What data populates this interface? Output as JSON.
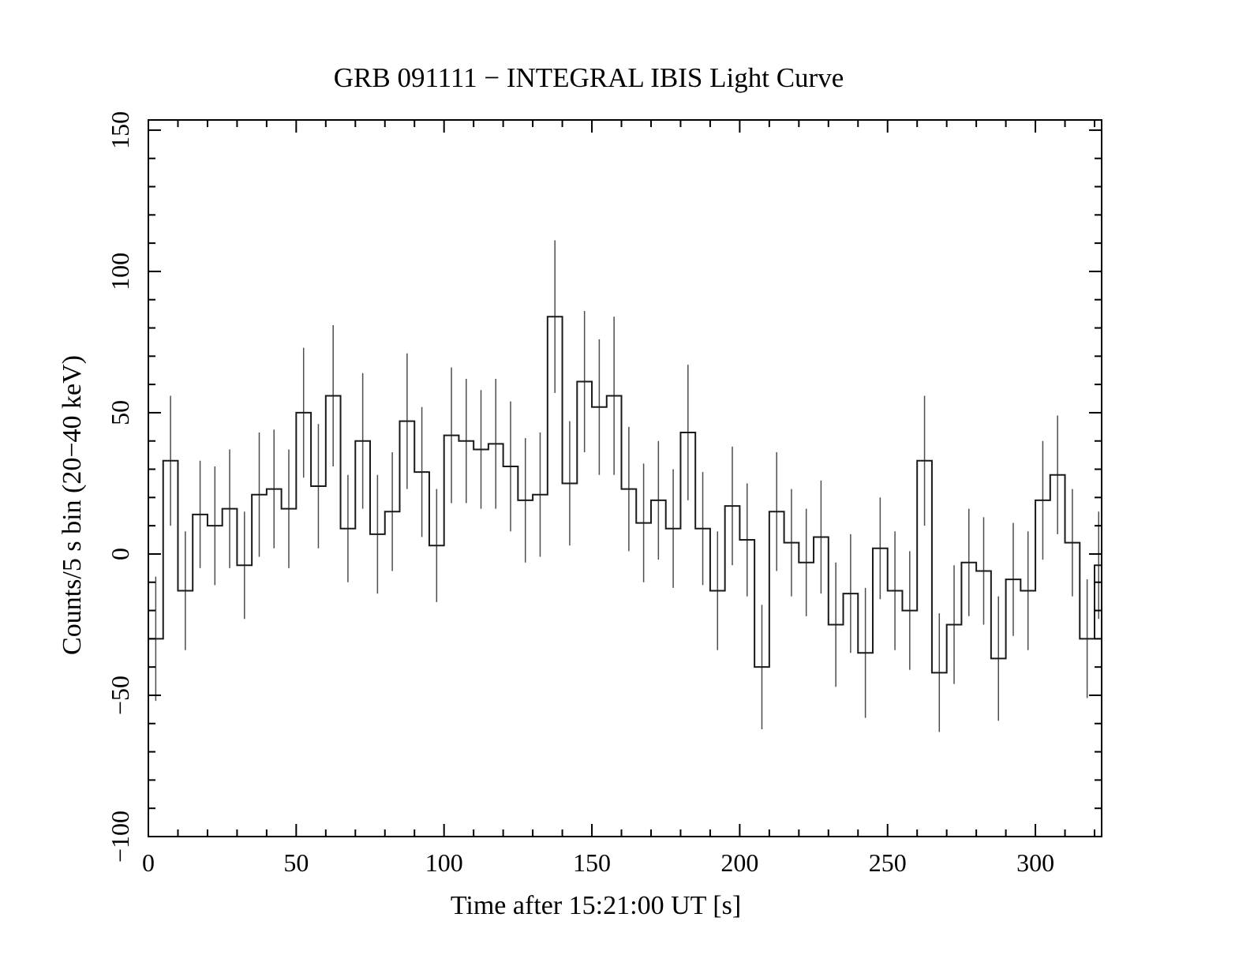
{
  "title": "GRB 091111 − INTEGRAL IBIS Light Curve",
  "chart_data": {
    "type": "step-histogram-with-errorbars",
    "title": "GRB 091111 − INTEGRAL IBIS Light Curve",
    "xlabel": "Time after 15:21:00 UT [s]",
    "ylabel": "Counts/5 s bin (20−40 keV)",
    "xlim": [
      0,
      322.4
    ],
    "ylim": [
      -100,
      153.6
    ],
    "grid": false,
    "legend": "none",
    "x_major_ticks": [
      0,
      50,
      100,
      150,
      200,
      250,
      300
    ],
    "x_tick_labels": [
      "0",
      "50",
      "100",
      "150",
      "200",
      "250",
      "300"
    ],
    "x_minor_step": 10,
    "y_major_ticks": [
      -100,
      -50,
      0,
      50,
      100,
      150
    ],
    "y_tick_labels": [
      "−100",
      "−50",
      "0",
      "50",
      "100",
      "150"
    ],
    "y_minor_step": 10,
    "bin_start_s": 0,
    "bin_width_s": 5,
    "counts": [
      -30,
      33,
      -13,
      14,
      10,
      16,
      -4,
      21,
      23,
      16,
      50,
      24,
      56,
      9,
      40,
      7,
      15,
      47,
      29,
      3,
      42,
      40,
      37,
      39,
      31,
      19,
      21,
      84,
      25,
      61,
      52,
      56,
      23,
      11,
      19,
      9,
      43,
      9,
      -13,
      17,
      5,
      -40,
      15,
      4,
      -3,
      6,
      -25,
      -14,
      -35,
      2,
      -13,
      -20,
      33,
      -42,
      -25,
      -3,
      -6,
      -37,
      -9,
      -13,
      19,
      28,
      4,
      -30,
      -4
    ],
    "errors": [
      22,
      23,
      21,
      19,
      21,
      21,
      19,
      22,
      21,
      21,
      23,
      22,
      25,
      19,
      24,
      21,
      21,
      24,
      23,
      20,
      24,
      22,
      21,
      23,
      23,
      22,
      22,
      27,
      22,
      25,
      24,
      28,
      22,
      21,
      21,
      21,
      24,
      20,
      21,
      21,
      20,
      22,
      21,
      19,
      19,
      20,
      22,
      21,
      23,
      18,
      21,
      21,
      23,
      21,
      21,
      19,
      19,
      22,
      20,
      21,
      21,
      21,
      19,
      21,
      19
    ],
    "line_color": "#1a1a1a",
    "errorbar_color": "#4d4d4d",
    "frame_color": "#000000"
  }
}
